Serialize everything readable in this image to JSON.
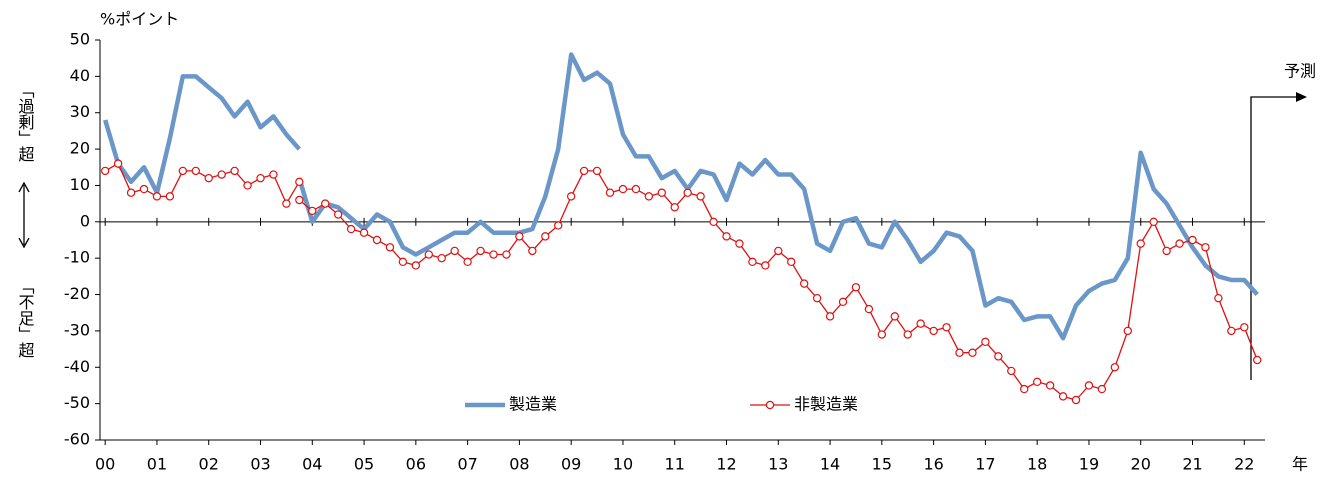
{
  "chart_data": {
    "type": "line",
    "y_unit_label": "%ポイント",
    "y_label_top": "「過剰」超",
    "y_label_bottom": "「不足」超",
    "x_axis_label": "年",
    "annotation": "予測",
    "x": [
      2000,
      2000.25,
      2000.5,
      2000.75,
      2001,
      2001.25,
      2001.5,
      2001.75,
      2002,
      2002.25,
      2002.5,
      2002.75,
      2003,
      2003.25,
      2003.5,
      2003.75,
      2003.75,
      2003.75,
      2004,
      2004.25,
      2004.5,
      2004.75,
      2005,
      2005.25,
      2005.5,
      2005.75,
      2006,
      2006.25,
      2006.5,
      2006.75,
      2007,
      2007.25,
      2007.5,
      2007.75,
      2008,
      2008.25,
      2008.5,
      2008.75,
      2009,
      2009.25,
      2009.5,
      2009.75,
      2010,
      2010.25,
      2010.5,
      2010.75,
      2011,
      2011.25,
      2011.5,
      2011.75,
      2012,
      2012.25,
      2012.5,
      2012.75,
      2013,
      2013.25,
      2013.5,
      2013.75,
      2014,
      2014.25,
      2014.5,
      2014.75,
      2015,
      2015.25,
      2015.5,
      2015.75,
      2016,
      2016.25,
      2016.5,
      2016.75,
      2017,
      2017.25,
      2017.5,
      2017.75,
      2018,
      2018.25,
      2018.5,
      2018.75,
      2019,
      2019.25,
      2019.5,
      2019.75,
      2020,
      2020.25,
      2020.5,
      2020.75,
      2021,
      2021.25,
      2021.5,
      2021.75,
      2022,
      2022.25
    ],
    "series": [
      {
        "name": "製造業",
        "color": "#6a97c8",
        "values": [
          28,
          16,
          11,
          15,
          8,
          23,
          40,
          40,
          37,
          34,
          29,
          33,
          26,
          29,
          24,
          20,
          null,
          12,
          0,
          5,
          4,
          1,
          -2,
          2,
          0,
          -7,
          -9,
          -7,
          -5,
          -3,
          -3,
          0,
          -3,
          -3,
          -3,
          -2,
          7,
          20,
          46,
          39,
          41,
          38,
          24,
          18,
          18,
          12,
          14,
          9,
          14,
          13,
          6,
          16,
          13,
          17,
          13,
          13,
          9,
          -6,
          -8,
          0,
          1,
          -6,
          -7,
          0,
          -5,
          -11,
          -8,
          -3,
          -4,
          -8,
          -23,
          -21,
          -22,
          -27,
          -26,
          -26,
          -32,
          -23,
          -19,
          -17,
          -16,
          -10,
          19,
          9,
          5,
          -1,
          -7,
          -12,
          -15,
          -16,
          -16,
          -20
        ]
      },
      {
        "name": "非製造業",
        "color": "#e01010",
        "values": [
          14,
          16,
          8,
          9,
          7,
          7,
          14,
          14,
          12,
          13,
          14,
          10,
          12,
          13,
          5,
          11,
          null,
          6,
          3,
          5,
          2,
          -2,
          -3,
          -5,
          -7,
          -11,
          -12,
          -9,
          -10,
          -8,
          -11,
          -8,
          -9,
          -9,
          -4,
          -8,
          -4,
          -1,
          7,
          14,
          14,
          8,
          9,
          9,
          7,
          8,
          4,
          8,
          7,
          0,
          -4,
          -6,
          -11,
          -12,
          -8,
          -11,
          -17,
          -21,
          -26,
          -22,
          -18,
          -24,
          -31,
          -26,
          -31,
          -28,
          -30,
          -29,
          -36,
          -36,
          -33,
          -37,
          -41,
          -46,
          -44,
          -45,
          -48,
          -49,
          -45,
          -46,
          -40,
          -30,
          -6,
          0,
          -8,
          -6,
          -5,
          -7,
          -21,
          -30,
          -29,
          -38
        ]
      }
    ],
    "xlim": [
      1999.9,
      2022.4
    ],
    "xticks": [
      {
        "value": 2000,
        "label": "00"
      },
      {
        "value": 2001,
        "label": "01"
      },
      {
        "value": 2002,
        "label": "02"
      },
      {
        "value": 2003,
        "label": "03"
      },
      {
        "value": 2004,
        "label": "04"
      },
      {
        "value": 2005,
        "label": "05"
      },
      {
        "value": 2006,
        "label": "06"
      },
      {
        "value": 2007,
        "label": "07"
      },
      {
        "value": 2008,
        "label": "08"
      },
      {
        "value": 2009,
        "label": "09"
      },
      {
        "value": 2010,
        "label": "10"
      },
      {
        "value": 2011,
        "label": "11"
      },
      {
        "value": 2012,
        "label": "12"
      },
      {
        "value": 2013,
        "label": "13"
      },
      {
        "value": 2014,
        "label": "14"
      },
      {
        "value": 2015,
        "label": "15"
      },
      {
        "value": 2016,
        "label": "16"
      },
      {
        "value": 2017,
        "label": "17"
      },
      {
        "value": 2018,
        "label": "18"
      },
      {
        "value": 2019,
        "label": "19"
      },
      {
        "value": 2020,
        "label": "20"
      },
      {
        "value": 2021,
        "label": "21"
      },
      {
        "value": 2022,
        "label": "22"
      }
    ],
    "ylim": [
      -60,
      50
    ],
    "yticks": [
      -60,
      -50,
      -40,
      -30,
      -20,
      -10,
      0,
      10,
      20,
      30,
      40,
      50
    ],
    "grid": false,
    "legend": "lower center"
  }
}
